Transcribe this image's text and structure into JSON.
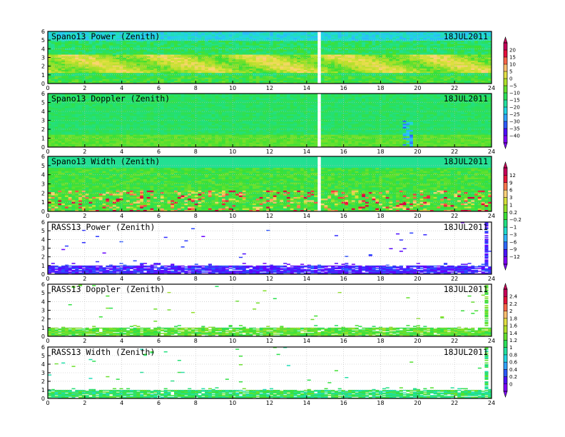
{
  "date_label": "18JUL2011",
  "colors": {
    "palette_stops": [
      "#8000ff",
      "#5a00ff",
      "#2a3cff",
      "#2f7cff",
      "#2fb4ff",
      "#21d8e0",
      "#22e0a8",
      "#23e070",
      "#3ae034",
      "#7fe02a",
      "#b8e02a",
      "#e0e040",
      "#ffd27a",
      "#ff9050",
      "#ff4040",
      "#e0003a",
      "#c8005a"
    ],
    "axes": "#000000",
    "grid": "#bbbbbb"
  },
  "chart_data": [
    {
      "type": "heatmap",
      "title": "Spano13 Power (Zenith)",
      "xlim": [
        0,
        24
      ],
      "ylim": [
        0,
        6
      ],
      "xticks": [
        "0",
        "2",
        "4",
        "6",
        "8",
        "10",
        "12",
        "14",
        "16",
        "18",
        "20",
        "22",
        "24"
      ],
      "yticks": [
        "0",
        "1",
        "2",
        "3",
        "4",
        "5",
        "6"
      ],
      "field": "dense",
      "colorscale": "A"
    },
    {
      "type": "heatmap",
      "title": "Spano13 Doppler (Zenith)",
      "xlim": [
        0,
        24
      ],
      "ylim": [
        0,
        6
      ],
      "xticks": [
        "0",
        "2",
        "4",
        "6",
        "8",
        "10",
        "12",
        "14",
        "16",
        "18",
        "20",
        "22",
        "24"
      ],
      "yticks": [
        "0",
        "1",
        "2",
        "3",
        "4",
        "5",
        "6"
      ],
      "field": "dense",
      "colorscale": "A"
    },
    {
      "type": "heatmap",
      "title": "Spano13 Width (Zenith)",
      "xlim": [
        0,
        24
      ],
      "ylim": [
        0,
        6
      ],
      "xticks": [
        "0",
        "2",
        "4",
        "6",
        "8",
        "10",
        "12",
        "14",
        "16",
        "18",
        "20",
        "22",
        "24"
      ],
      "yticks": [
        "0",
        "1",
        "2",
        "3",
        "4",
        "5",
        "6"
      ],
      "field": "dense",
      "colorscale": "B"
    },
    {
      "type": "heatmap",
      "title": "RASS13 Power (Zenith)",
      "xlim": [
        0,
        24
      ],
      "ylim": [
        0,
        6
      ],
      "xticks": [
        "0",
        "2",
        "4",
        "6",
        "8",
        "10",
        "12",
        "14",
        "16",
        "18",
        "20",
        "22",
        "24"
      ],
      "yticks": [
        "0",
        "1",
        "2",
        "3",
        "4",
        "5",
        "6"
      ],
      "field": "sparse",
      "colorscale": "B"
    },
    {
      "type": "heatmap",
      "title": "RASS13 Doppler (Zenith)",
      "xlim": [
        0,
        24
      ],
      "ylim": [
        0,
        6
      ],
      "xticks": [
        "0",
        "2",
        "4",
        "6",
        "8",
        "10",
        "12",
        "14",
        "16",
        "18",
        "20",
        "22",
        "24"
      ],
      "yticks": [
        "0",
        "1",
        "2",
        "3",
        "4",
        "5",
        "6"
      ],
      "field": "sparse",
      "colorscale": "C"
    },
    {
      "type": "heatmap",
      "title": "RASS13 Width (Zenith)",
      "xlim": [
        0,
        24
      ],
      "ylim": [
        0,
        6
      ],
      "xticks": [
        "0",
        "2",
        "4",
        "6",
        "8",
        "10",
        "12",
        "14",
        "16",
        "18",
        "20",
        "22",
        "24"
      ],
      "yticks": [
        "0",
        "1",
        "2",
        "3",
        "4",
        "5",
        "6"
      ],
      "field": "sparse",
      "colorscale": "C"
    }
  ],
  "colorbars": [
    {
      "labels": [
        "20",
        "15",
        "10",
        "5",
        "0",
        "−5",
        "−10",
        "−15",
        "−20",
        "−25",
        "−30",
        "−35",
        "−40"
      ]
    },
    {
      "labels": [
        "12",
        "9",
        "6",
        "3",
        "1",
        "0.2",
        "−0.2",
        "−1",
        "−3",
        "−6",
        "−9",
        "−12"
      ]
    },
    {
      "labels": [
        "2.4",
        "2.2",
        "2",
        "1.8",
        "1.6",
        "1.4",
        "1.2",
        "1",
        "0.8",
        "0.6",
        "0.4",
        "0.2",
        "0"
      ]
    }
  ]
}
